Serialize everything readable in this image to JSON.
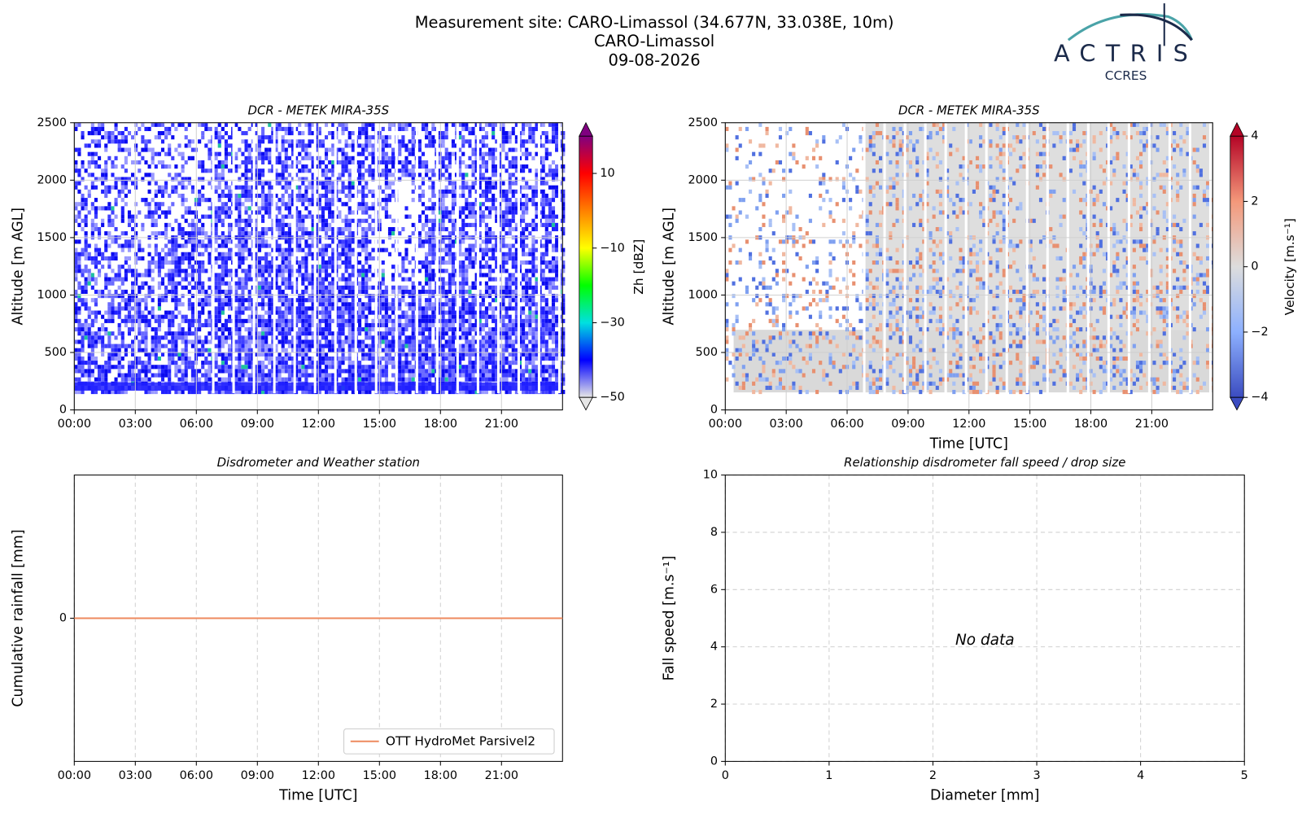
{
  "header": {
    "title_lines": [
      "Measurement site: CARO-Limassol (34.677N, 33.038E, 10m)",
      "CARO-Limassol",
      "09-08-2026"
    ],
    "logo_name": "ACTRIS",
    "logo_sub": "CCRES"
  },
  "chart_data": [
    {
      "type": "heatmap",
      "title": "DCR - METEK MIRA-35S",
      "ylabel": "Altitude [m AGL]",
      "xlim": [
        0,
        24
      ],
      "xticks": [
        {
          "value": 0,
          "label": "00:00"
        },
        {
          "value": 3,
          "label": "03:00"
        },
        {
          "value": 6,
          "label": "06:00"
        },
        {
          "value": 9,
          "label": "09:00"
        },
        {
          "value": 12,
          "label": "12:00"
        },
        {
          "value": 15,
          "label": "15:00"
        },
        {
          "value": 18,
          "label": "18:00"
        },
        {
          "value": 21,
          "label": "21:00"
        }
      ],
      "ylim": [
        0,
        2500
      ],
      "yticks": [
        0,
        500,
        1000,
        1500,
        2000,
        2500
      ],
      "grid": true,
      "grid_linestyle": "solid",
      "colorbar": {
        "label": "Zh [dBZ]",
        "clim": [
          -50,
          20
        ],
        "ticks": [
          {
            "value": -50,
            "label": "−50"
          },
          {
            "value": -30,
            "label": "−30"
          },
          {
            "value": -10,
            "label": "−10"
          },
          {
            "value": 10,
            "label": "10"
          }
        ],
        "colors": [
          "#e6e6e6",
          "#0000ff",
          "#00e0e0",
          "#00ff00",
          "#ffff00",
          "#ff8000",
          "#ff0000",
          "#800080"
        ]
      }
    },
    {
      "type": "heatmap",
      "title": "DCR - METEK MIRA-35S",
      "xlabel": "Time [UTC]",
      "ylabel": "Altitude [m AGL]",
      "xlim": [
        0,
        24
      ],
      "xticks": [
        {
          "value": 0,
          "label": "00:00"
        },
        {
          "value": 3,
          "label": "03:00"
        },
        {
          "value": 6,
          "label": "06:00"
        },
        {
          "value": 9,
          "label": "09:00"
        },
        {
          "value": 12,
          "label": "12:00"
        },
        {
          "value": 15,
          "label": "15:00"
        },
        {
          "value": 18,
          "label": "18:00"
        },
        {
          "value": 21,
          "label": "21:00"
        }
      ],
      "ylim": [
        0,
        2500
      ],
      "yticks": [
        0,
        500,
        1000,
        1500,
        2000,
        2500
      ],
      "grid": true,
      "grid_linestyle": "solid",
      "colorbar": {
        "label": "Velocity [m.s⁻¹]",
        "clim": [
          -4,
          4
        ],
        "ticks": [
          {
            "value": -4,
            "label": "−4"
          },
          {
            "value": -2,
            "label": "−2"
          },
          0,
          2,
          4
        ],
        "colors": [
          "#3b4cc0",
          "#8db0fe",
          "#dddddd",
          "#f4987a",
          "#b40426"
        ]
      }
    },
    {
      "type": "line",
      "title": "Disdrometer and Weather station",
      "xlabel": "Time [UTC]",
      "ylabel": "Cumulative rainfall [mm]",
      "xlim": [
        0,
        24
      ],
      "xticks": [
        {
          "value": 0,
          "label": "00:00"
        },
        {
          "value": 3,
          "label": "03:00"
        },
        {
          "value": 6,
          "label": "06:00"
        },
        {
          "value": 9,
          "label": "09:00"
        },
        {
          "value": 12,
          "label": "12:00"
        },
        {
          "value": 15,
          "label": "15:00"
        },
        {
          "value": 18,
          "label": "18:00"
        },
        {
          "value": 21,
          "label": "21:00"
        }
      ],
      "ylim": [
        -0.055,
        0.055
      ],
      "yticks": [
        0
      ],
      "grid": true,
      "grid_linestyle": "dashed",
      "legend": "lower right",
      "x": [
        0,
        24
      ],
      "series": [
        {
          "name": "OTT HydroMet Parsivel2",
          "color": "#ee8a5e",
          "values": [
            0,
            0
          ]
        }
      ]
    },
    {
      "type": "scatter",
      "title": "Relationship disdrometer fall speed / drop size",
      "xlabel": "Diameter [mm]",
      "ylabel": "Fall speed [m.s⁻¹]",
      "xlim": [
        0,
        5
      ],
      "xticks": [
        0,
        1,
        2,
        3,
        4,
        5
      ],
      "ylim": [
        0,
        10
      ],
      "yticks": [
        0,
        2,
        4,
        6,
        8,
        10
      ],
      "grid": true,
      "grid_linestyle": "dashed",
      "x": [],
      "y": [],
      "annotation": "No data"
    }
  ]
}
